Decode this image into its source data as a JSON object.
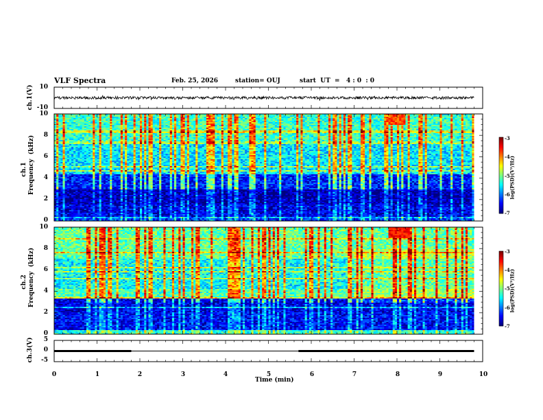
{
  "header": {
    "title": "VLF Spectra",
    "date": "Feb. 25, 2026",
    "station": "station= OUJ",
    "start": "start  UT  =   4 : 0  : 0"
  },
  "colors": {
    "jet": [
      "#00007f",
      "#0000ff",
      "#007fff",
      "#00ffff",
      "#7fff7f",
      "#ffff00",
      "#ff7f00",
      "#ff0000",
      "#7f0000"
    ],
    "trace": "#000000"
  },
  "chart_data": [
    {
      "id": "ch1-waveform",
      "type": "line",
      "ylabel": "ch.1(V)",
      "ylim": [
        -10,
        10
      ],
      "yticks": [
        "10",
        "-10"
      ],
      "x": [
        0,
        10
      ],
      "level": 0,
      "xlim": [
        0,
        9.8
      ]
    },
    {
      "id": "ch1-spectrogram",
      "type": "heatmap",
      "ylabel": "ch.1\nFrequency  (kHz)",
      "ylim": [
        0,
        10
      ],
      "yticks": [
        "0",
        "2",
        "4",
        "6",
        "8",
        "10"
      ],
      "xlim": [
        0,
        9.8
      ],
      "colorbar": {
        "label": "log(PSD)(V²/Hz)",
        "range": [
          -7,
          -3
        ],
        "ticks": [
          "-3",
          "-4",
          "-5",
          "-6",
          "-7"
        ]
      },
      "bands": [
        {
          "f": [
            0,
            0.3
          ],
          "level": -6.3
        },
        {
          "f": [
            0.3,
            1.5
          ],
          "level": -6.6
        },
        {
          "f": [
            1.5,
            3.0
          ],
          "level": -6.8
        },
        {
          "f": [
            3.0,
            4.5
          ],
          "level": -6.4
        },
        {
          "f": [
            4.5,
            7.5
          ],
          "level": -5.6
        },
        {
          "f": [
            7.5,
            10
          ],
          "level": -5.3
        }
      ],
      "hotspot": {
        "t": [
          7.8,
          8.2
        ],
        "f": [
          9.0,
          10
        ],
        "level": -3.8
      }
    },
    {
      "id": "ch2-spectrogram",
      "type": "heatmap",
      "ylabel": "ch.2\nFrequency  (kHz)",
      "ylim": [
        0,
        10
      ],
      "yticks": [
        "0",
        "2",
        "4",
        "6",
        "8",
        "10"
      ],
      "xlim": [
        0,
        9.8
      ],
      "colorbar": {
        "label": "log(PSD)(V²/Hz)",
        "range": [
          -7,
          -3
        ],
        "ticks": [
          "-3",
          "-4",
          "-5",
          "-6",
          "-7"
        ]
      },
      "bands": [
        {
          "f": [
            0,
            0.4
          ],
          "level": -5.4
        },
        {
          "f": [
            0.4,
            2.0
          ],
          "level": -6.5
        },
        {
          "f": [
            2.0,
            3.3
          ],
          "level": -6.6
        },
        {
          "f": [
            3.3,
            4.2
          ],
          "level": -5.2
        },
        {
          "f": [
            4.2,
            7.0
          ],
          "level": -5.5
        },
        {
          "f": [
            7.0,
            10
          ],
          "level": -5.1
        }
      ],
      "hotspot": {
        "t": [
          7.8,
          8.3
        ],
        "f": [
          9.0,
          10
        ],
        "level": -3.5
      }
    },
    {
      "id": "ch3-signal",
      "type": "line",
      "ylabel": "ch.3(V)",
      "ylim": [
        -5,
        5
      ],
      "yticks": [
        "5",
        "0",
        "-5"
      ],
      "segments": [
        {
          "t": [
            0,
            1.8
          ],
          "v": 0,
          "thick": true
        },
        {
          "t": [
            1.8,
            5.7
          ],
          "v": 0,
          "thick": false
        },
        {
          "t": [
            5.7,
            9.8
          ],
          "v": 0,
          "thick": true
        }
      ]
    }
  ],
  "xaxis": {
    "label": "Time  (min)",
    "ticks": [
      "0",
      "1",
      "2",
      "3",
      "4",
      "5",
      "6",
      "7",
      "8",
      "9",
      "10"
    ],
    "range": [
      0,
      10
    ]
  }
}
